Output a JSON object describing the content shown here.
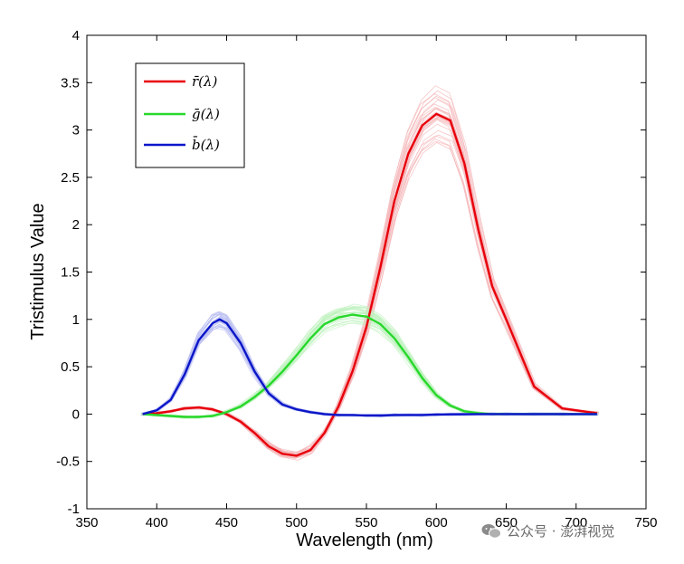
{
  "chart_data": {
    "type": "line",
    "title": "",
    "xlabel": "Wavelength (nm)",
    "ylabel": "Tristimulus Value",
    "xlim": [
      350,
      750
    ],
    "ylim": [
      -1,
      4
    ],
    "xticks": [
      350,
      400,
      450,
      500,
      550,
      600,
      650,
      700,
      750
    ],
    "yticks": [
      -1,
      -0.5,
      0,
      0.5,
      1,
      1.5,
      2,
      2.5,
      3,
      3.5,
      4
    ],
    "xtick_labels": [
      "350",
      "400",
      "450",
      "500",
      "550",
      "600",
      "650",
      "700",
      "750"
    ],
    "ytick_labels": [
      "-1",
      "-0.5",
      "0",
      "0.5",
      "1",
      "1.5",
      "2",
      "2.5",
      "3",
      "3.5",
      "4"
    ],
    "grid": false,
    "legend_position": "top-left",
    "series": [
      {
        "name": "r̄(λ)",
        "color": "#e8000b",
        "band_color": "#f4b3b6",
        "x": [
          390,
          400,
          410,
          420,
          430,
          440,
          450,
          460,
          470,
          480,
          490,
          500,
          510,
          520,
          530,
          540,
          550,
          560,
          570,
          580,
          590,
          600,
          610,
          620,
          630,
          640,
          650,
          670,
          690,
          715
        ],
        "values": [
          0.0,
          0.01,
          0.03,
          0.06,
          0.07,
          0.05,
          0.0,
          -0.08,
          -0.2,
          -0.34,
          -0.42,
          -0.44,
          -0.38,
          -0.2,
          0.08,
          0.45,
          0.92,
          1.55,
          2.25,
          2.75,
          3.05,
          3.17,
          3.1,
          2.65,
          1.95,
          1.35,
          1.0,
          0.29,
          0.06,
          0.01
        ]
      },
      {
        "name": "ḡ(λ)",
        "color": "#28d82b",
        "band_color": "#bff2bf",
        "x": [
          390,
          400,
          410,
          420,
          430,
          440,
          450,
          460,
          470,
          480,
          490,
          500,
          510,
          520,
          530,
          540,
          550,
          560,
          570,
          580,
          590,
          600,
          610,
          620,
          630,
          640,
          650,
          670,
          690,
          715
        ],
        "values": [
          0.0,
          -0.01,
          -0.02,
          -0.03,
          -0.03,
          -0.02,
          0.02,
          0.08,
          0.18,
          0.3,
          0.45,
          0.62,
          0.8,
          0.95,
          1.02,
          1.05,
          1.03,
          0.95,
          0.8,
          0.6,
          0.38,
          0.2,
          0.09,
          0.03,
          0.01,
          0.0,
          0.0,
          0.0,
          0.0,
          0.0
        ]
      },
      {
        "name": "b̄(λ)",
        "color": "#0a16c8",
        "band_color": "#b9bdf2",
        "x": [
          390,
          400,
          410,
          420,
          430,
          440,
          445,
          450,
          460,
          470,
          480,
          490,
          500,
          510,
          520,
          530,
          540,
          550,
          560,
          570,
          580,
          590,
          600,
          610,
          620,
          630,
          640,
          650,
          670,
          690,
          715
        ],
        "values": [
          0.0,
          0.04,
          0.15,
          0.42,
          0.78,
          0.96,
          1.0,
          0.96,
          0.75,
          0.45,
          0.22,
          0.1,
          0.05,
          0.02,
          0.0,
          -0.01,
          -0.01,
          -0.015,
          -0.015,
          -0.01,
          -0.01,
          -0.01,
          -0.005,
          -0.003,
          -0.002,
          0.0,
          0.0,
          0.0,
          0.0,
          0.0,
          0.0
        ]
      }
    ]
  },
  "legend": {
    "r_label": "r̄(λ)",
    "g_label": "ḡ(λ)",
    "b_label": "b̄(λ)"
  },
  "watermark": {
    "text": "公众号 · 澎湃视觉"
  }
}
